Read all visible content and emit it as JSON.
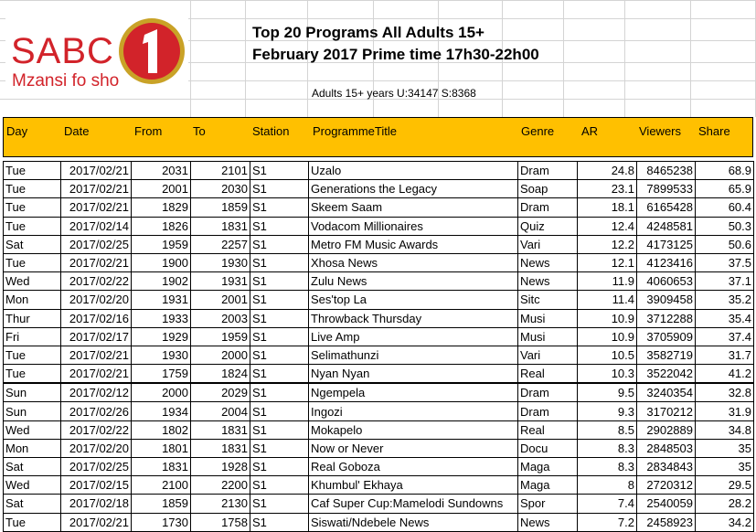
{
  "logo": {
    "brand": "SABC",
    "number": "1",
    "tagline": "Mzansi fo sho"
  },
  "title_line1": "Top 20 Programs All Adults 15+",
  "title_line2": "February 2017 Prime time 17h30-22h00",
  "subtitle": "Adults 15+ years U:34147 S:8368",
  "colors": {
    "header_fill": "#ffc000",
    "logo_red": "#d2232a",
    "logo_gold": "#c9a227"
  },
  "headers": [
    "Day",
    "Date",
    "From",
    "To",
    "Station",
    "ProgrammeTitle",
    "Genre",
    "AR",
    "Viewers",
    "Share"
  ],
  "rows": [
    [
      "Tue",
      "2017/02/21",
      "2031",
      "2101",
      "S1",
      "Uzalo",
      "Dram",
      "24.8",
      "8465238",
      "68.9"
    ],
    [
      "Tue",
      "2017/02/21",
      "2001",
      "2030",
      "S1",
      "Generations the Legacy",
      "Soap",
      "23.1",
      "7899533",
      "65.9"
    ],
    [
      "Tue",
      "2017/02/21",
      "1829",
      "1859",
      "S1",
      "Skeem Saam",
      "Dram",
      "18.1",
      "6165428",
      "60.4"
    ],
    [
      "Tue",
      "2017/02/14",
      "1826",
      "1831",
      "S1",
      "Vodacom Millionaires",
      "Quiz",
      "12.4",
      "4248581",
      "50.3"
    ],
    [
      "Sat",
      "2017/02/25",
      "1959",
      "2257",
      "S1",
      "Metro FM Music Awards",
      "Vari",
      "12.2",
      "4173125",
      "50.6"
    ],
    [
      "Tue",
      "2017/02/21",
      "1900",
      "1930",
      "S1",
      "Xhosa News",
      "News",
      "12.1",
      "4123416",
      "37.5"
    ],
    [
      "Wed",
      "2017/02/22",
      "1902",
      "1931",
      "S1",
      "Zulu News",
      "News",
      "11.9",
      "4060653",
      "37.1"
    ],
    [
      "Mon",
      "2017/02/20",
      "1931",
      "2001",
      "S1",
      "Ses'top La",
      "Sitc",
      "11.4",
      "3909458",
      "35.2"
    ],
    [
      "Thur",
      "2017/02/16",
      "1933",
      "2003",
      "S1",
      "Throwback Thursday",
      "Musi",
      "10.9",
      "3712288",
      "35.4"
    ],
    [
      "Fri",
      "2017/02/17",
      "1929",
      "1959",
      "S1",
      "Live Amp",
      "Musi",
      "10.9",
      "3705909",
      "37.4"
    ],
    [
      "Tue",
      "2017/02/21",
      "1930",
      "2000",
      "S1",
      "Selimathunzi",
      "Vari",
      "10.5",
      "3582719",
      "31.7"
    ],
    [
      "Tue",
      "2017/02/21",
      "1759",
      "1824",
      "S1",
      "Nyan Nyan",
      "Real",
      "10.3",
      "3522042",
      "41.2"
    ],
    [
      "Sun",
      "2017/02/12",
      "2000",
      "2029",
      "S1",
      "Ngempela",
      "Dram",
      "9.5",
      "3240354",
      "32.8"
    ],
    [
      "Sun",
      "2017/02/26",
      "1934",
      "2004",
      "S1",
      "Ingozi",
      "Dram",
      "9.3",
      "3170212",
      "31.9"
    ],
    [
      "Wed",
      "2017/02/22",
      "1802",
      "1831",
      "S1",
      "Mokapelo",
      "Real",
      "8.5",
      "2902889",
      "34.8"
    ],
    [
      "Mon",
      "2017/02/20",
      "1801",
      "1831",
      "S1",
      "Now or Never",
      "Docu",
      "8.3",
      "2848503",
      "35"
    ],
    [
      "Sat",
      "2017/02/25",
      "1831",
      "1928",
      "S1",
      "Real Goboza",
      "Maga",
      "8.3",
      "2834843",
      "35"
    ],
    [
      "Wed",
      "2017/02/15",
      "2100",
      "2200",
      "S1",
      "Khumbul' Ekhaya",
      "Maga",
      "8",
      "2720312",
      "29.5"
    ],
    [
      "Sat",
      "2017/02/18",
      "1859",
      "2130",
      "S1",
      "Caf Super Cup:Mamelodi Sundowns",
      "Spor",
      "7.4",
      "2540059",
      "28.2"
    ],
    [
      "Tue",
      "2017/02/21",
      "1730",
      "1758",
      "S1",
      "Siswati/Ndebele News",
      "News",
      "7.2",
      "2458923",
      "34.2"
    ]
  ]
}
